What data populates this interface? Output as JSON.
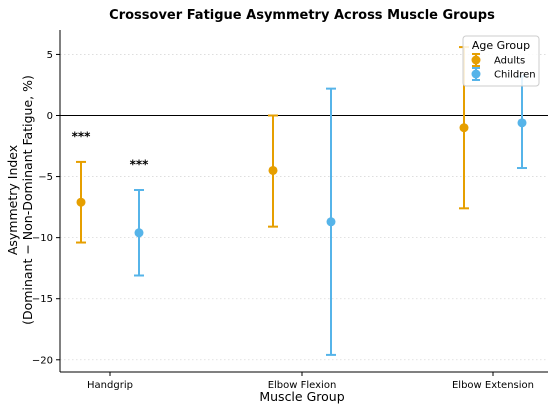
{
  "chart_data": {
    "type": "errorbar",
    "title": "Crossover Fatigue Asymmetry Across Muscle Groups",
    "xlabel": "Muscle Group",
    "ylabel_line1": "Asymmetry Index",
    "ylabel_line2": "(Dominant − Non-Dominant Fatigue, %)",
    "categories": [
      "Handgrip",
      "Elbow Flexion",
      "Elbow Extension"
    ],
    "ylim": [
      -21,
      7
    ],
    "yticks": [
      5,
      0,
      -5,
      -10,
      -15,
      -20
    ],
    "ytick_labels": [
      "5",
      "0",
      "−5",
      "−10",
      "−15",
      "−20"
    ],
    "reference_line": 0,
    "grid": "horizontal-dotted",
    "legend": {
      "title": "Age Group",
      "placement": "top-right"
    },
    "series": [
      {
        "name": "Adults",
        "color": "#E69F00",
        "means": [
          -7.1,
          -4.5,
          -1.0
        ],
        "lower": [
          -10.4,
          -9.1,
          -7.6
        ],
        "upper": [
          -3.8,
          0.0,
          5.6
        ]
      },
      {
        "name": "Children",
        "color": "#56B4E9",
        "means": [
          -9.6,
          -8.7,
          -0.6
        ],
        "lower": [
          -13.1,
          -19.6,
          -4.3
        ],
        "upper": [
          -6.1,
          2.2,
          3.2
        ]
      }
    ],
    "annotations": [
      {
        "text": "***",
        "category": 0,
        "series": 0,
        "y": -1.7
      },
      {
        "text": "***",
        "category": 0,
        "series": 1,
        "y": -4.0
      }
    ]
  }
}
